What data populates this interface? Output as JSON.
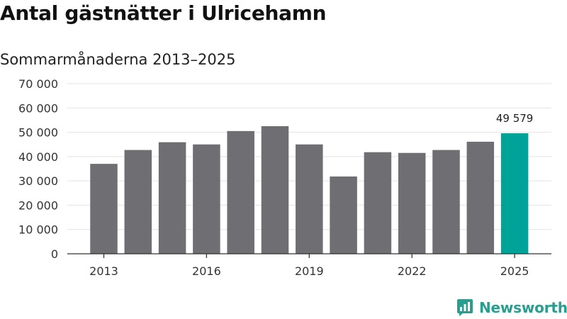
{
  "title": "Antal gästnätter i Ulricehamn",
  "subtitle": "Sommarmånaderna 2013–2025",
  "brand": {
    "name": "Newsworthy",
    "logo_icon": "bar-chart-logo-icon"
  },
  "colors": {
    "bar": "#6e6e73",
    "highlight": "#00a398",
    "grid": "#e3e3e3",
    "axis": "#333333"
  },
  "chart_data": {
    "type": "bar",
    "title": "Antal gästnätter i Ulricehamn",
    "subtitle": "Sommarmånaderna 2013–2025",
    "categories": [
      "2013",
      "2014",
      "2015",
      "2016",
      "2017",
      "2018",
      "2019",
      "2020",
      "2021",
      "2022",
      "2023",
      "2024",
      "2025"
    ],
    "values": [
      37000,
      42700,
      45900,
      45000,
      50500,
      52500,
      45000,
      31800,
      41800,
      41500,
      42700,
      46100,
      49579
    ],
    "ylim": [
      0,
      70000
    ],
    "yticks": [
      0,
      10000,
      20000,
      30000,
      40000,
      50000,
      60000,
      70000
    ],
    "ytick_labels": [
      "0",
      "10 000",
      "20 000",
      "30 000",
      "40 000",
      "50 000",
      "60 000",
      "70 000"
    ],
    "xtick_labels": [
      "2013",
      "2016",
      "2019",
      "2022",
      "2025"
    ],
    "highlight": {
      "category": "2025",
      "label": "49 579"
    },
    "grid": true,
    "legend": "none"
  }
}
